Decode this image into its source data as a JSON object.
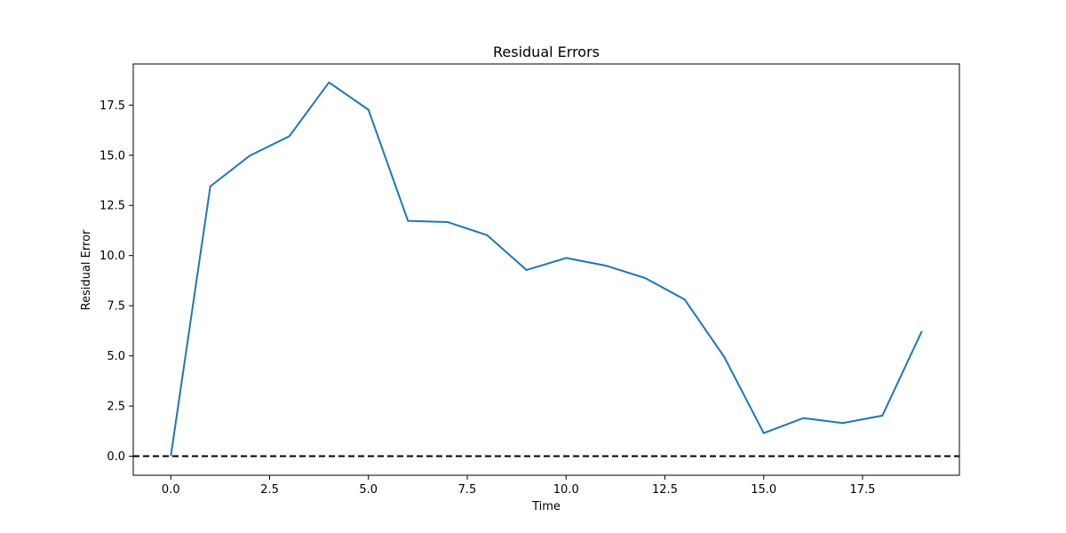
{
  "chart_data": {
    "type": "line",
    "title": "Residual Errors",
    "xlabel": "Time",
    "ylabel": "Residual Error",
    "xlim": [
      -0.95,
      19.95
    ],
    "ylim": [
      -0.95,
      19.55
    ],
    "x_ticks": [
      0.0,
      2.5,
      5.0,
      7.5,
      10.0,
      12.5,
      15.0,
      17.5
    ],
    "x_tick_labels": [
      "0.0",
      "2.5",
      "5.0",
      "7.5",
      "10.0",
      "12.5",
      "15.0",
      "17.5"
    ],
    "y_ticks": [
      0.0,
      2.5,
      5.0,
      7.5,
      10.0,
      12.5,
      15.0,
      17.5
    ],
    "y_tick_labels": [
      "0.0",
      "2.5",
      "5.0",
      "7.5",
      "10.0",
      "12.5",
      "15.0",
      "17.5"
    ],
    "grid": false,
    "legend": "none",
    "series": [
      {
        "color": "#1f77b4",
        "x": [
          0,
          1,
          2,
          3,
          4,
          5,
          6,
          7,
          8,
          9,
          10,
          11,
          12,
          13,
          14,
          15,
          16,
          17,
          18,
          19
        ],
        "values": [
          0.0,
          13.45,
          14.98,
          15.95,
          18.63,
          17.27,
          11.73,
          11.67,
          11.02,
          9.28,
          9.88,
          9.5,
          8.88,
          7.81,
          4.95,
          1.15,
          1.9,
          1.65,
          2.02,
          6.23
        ]
      }
    ],
    "reference_lines": [
      {
        "y": 0,
        "style": "dashed",
        "color": "#000000"
      }
    ]
  }
}
